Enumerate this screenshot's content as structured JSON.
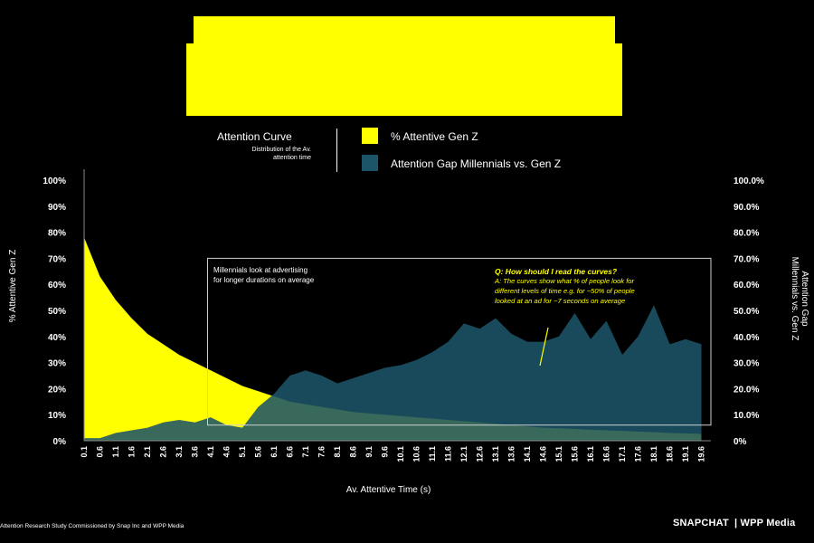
{
  "legend": {
    "title": "Attention Curve",
    "subtitle_line1": "Distribution of the Av.",
    "subtitle_line2": "attention time",
    "items": [
      {
        "label": "% Attentive Gen Z",
        "color": "#ffff00"
      },
      {
        "label": "Attention Gap Millennials vs. Gen Z",
        "color": "#1c5468"
      }
    ]
  },
  "annotations": {
    "callout_line1": "Millennials look at advertising",
    "callout_line2": "for longer durations on average",
    "question": "Q: How should I read the curves?",
    "answer_line1": "A: The curves show what % of people look for",
    "answer_line2": "different levels of time e.g. for ~50% of people",
    "answer_line3": "looked at an ad for ~7 seconds on average"
  },
  "footer": {
    "footnote": "Attention Research Study Commissioned by Snap Inc and WPP Media",
    "brand_snap": "SNAPCHAT",
    "brand_wpp": "| WPP Media"
  },
  "colors": {
    "gen_z": "#ffff00",
    "gap": "#1c5468",
    "background": "#000000",
    "title_block": "#ffff00"
  },
  "chart_data": {
    "type": "area",
    "xlabel": "Av. Attentive Time (s)",
    "ylabel_left": "% Attentive Gen Z",
    "ylabel_right_line1": "Attention Gap",
    "ylabel_right_line2": "Millennials vs. Gen Z",
    "ylim_left": [
      0,
      100
    ],
    "ylim_right": [
      0,
      100
    ],
    "yticks_left": [
      "0%",
      "10%",
      "20%",
      "30%",
      "40%",
      "50%",
      "60%",
      "70%",
      "80%",
      "90%",
      "100%"
    ],
    "yticks_right": [
      "0%",
      "10.0%",
      "20.0%",
      "30.0%",
      "40.0%",
      "50.0%",
      "60.0%",
      "70.0%",
      "80.0%",
      "90.0%",
      "100.0%"
    ],
    "x_ticks": [
      "0.1",
      "0.6",
      "1.1",
      "1.6",
      "2.1",
      "2.6",
      "3.1",
      "3.6",
      "4.1",
      "4.6",
      "5.1",
      "5.6",
      "6.1",
      "6.6",
      "7.1",
      "7.6",
      "8.1",
      "8.6",
      "9.1",
      "9.6",
      "10.1",
      "10.6",
      "11.1",
      "11.6",
      "12.1",
      "12.6",
      "13.1",
      "13.6",
      "14.1",
      "14.6",
      "15.1",
      "15.6",
      "16.1",
      "16.6",
      "17.1",
      "17.6",
      "18.1",
      "18.6",
      "19.1",
      "19.6"
    ],
    "x": [
      0.1,
      0.6,
      1.1,
      1.6,
      2.1,
      2.6,
      3.1,
      3.6,
      4.1,
      4.6,
      5.1,
      5.6,
      6.1,
      6.6,
      7.1,
      7.6,
      8.1,
      8.6,
      9.1,
      9.6,
      10.1,
      10.6,
      11.1,
      11.6,
      12.1,
      12.6,
      13.1,
      13.6,
      14.1,
      14.6,
      15.1,
      15.6,
      16.1,
      16.6,
      17.1,
      17.6,
      18.1,
      18.6,
      19.1,
      19.6
    ],
    "series": [
      {
        "name": "% Attentive Gen Z",
        "values": [
          78,
          63,
          54,
          47,
          41,
          37,
          33,
          30,
          27,
          24,
          21,
          19,
          17,
          15,
          14,
          13,
          12,
          11,
          10.5,
          10,
          9.5,
          9,
          8.5,
          8,
          7.5,
          7,
          6.5,
          6,
          5.5,
          5,
          4.8,
          4.5,
          4.2,
          4,
          3.8,
          3.5,
          3.3,
          3,
          2.8,
          2.6
        ]
      },
      {
        "name": "Attention Gap Millennials vs. Gen Z",
        "values": [
          1,
          1,
          3,
          4,
          5,
          7,
          8,
          7,
          9,
          6,
          5,
          13,
          18,
          25,
          27,
          25,
          22,
          24,
          26,
          28,
          29,
          31,
          34,
          38,
          45,
          43,
          47,
          41,
          38,
          38,
          40,
          49,
          39,
          46,
          33,
          40,
          52,
          37,
          39,
          37
        ]
      }
    ],
    "highlight_box": {
      "x_start": 4.0,
      "x_end": 19.9,
      "y_bottom": 6,
      "y_top": 70
    }
  }
}
